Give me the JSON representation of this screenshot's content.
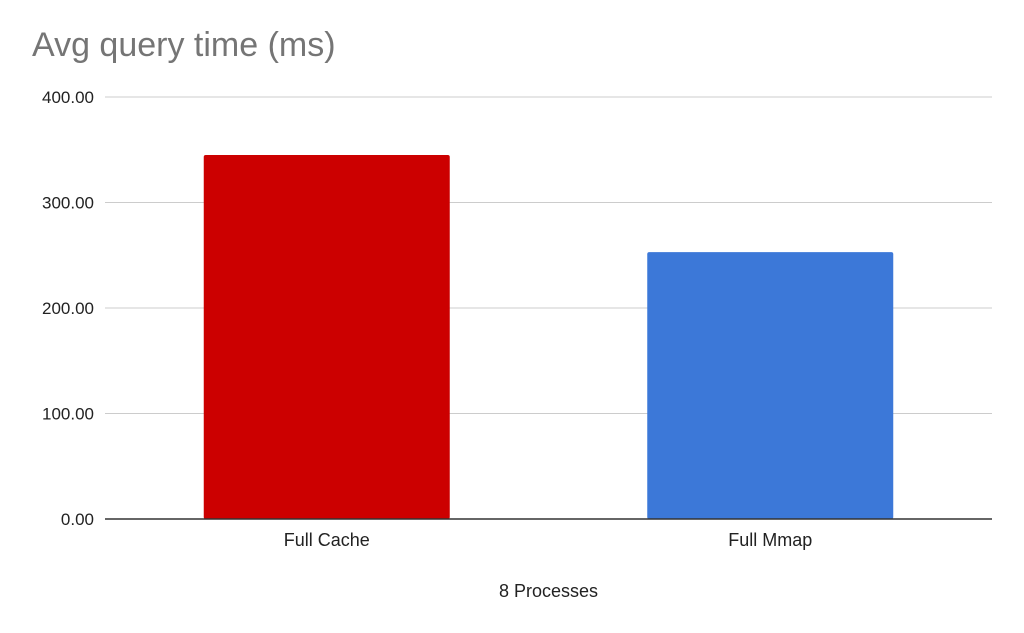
{
  "chart_data": {
    "type": "bar",
    "title": "Avg query time (ms)",
    "xlabel": "8 Processes",
    "ylabel": "",
    "categories": [
      "Full Cache",
      "Full Mmap"
    ],
    "values": [
      345,
      253
    ],
    "colors": [
      "#cc0000",
      "#3c78d8"
    ],
    "ylim": [
      0,
      400
    ],
    "yticks": [
      "0.00",
      "100.00",
      "200.00",
      "300.00",
      "400.00"
    ],
    "grid": true,
    "legend": "none"
  }
}
